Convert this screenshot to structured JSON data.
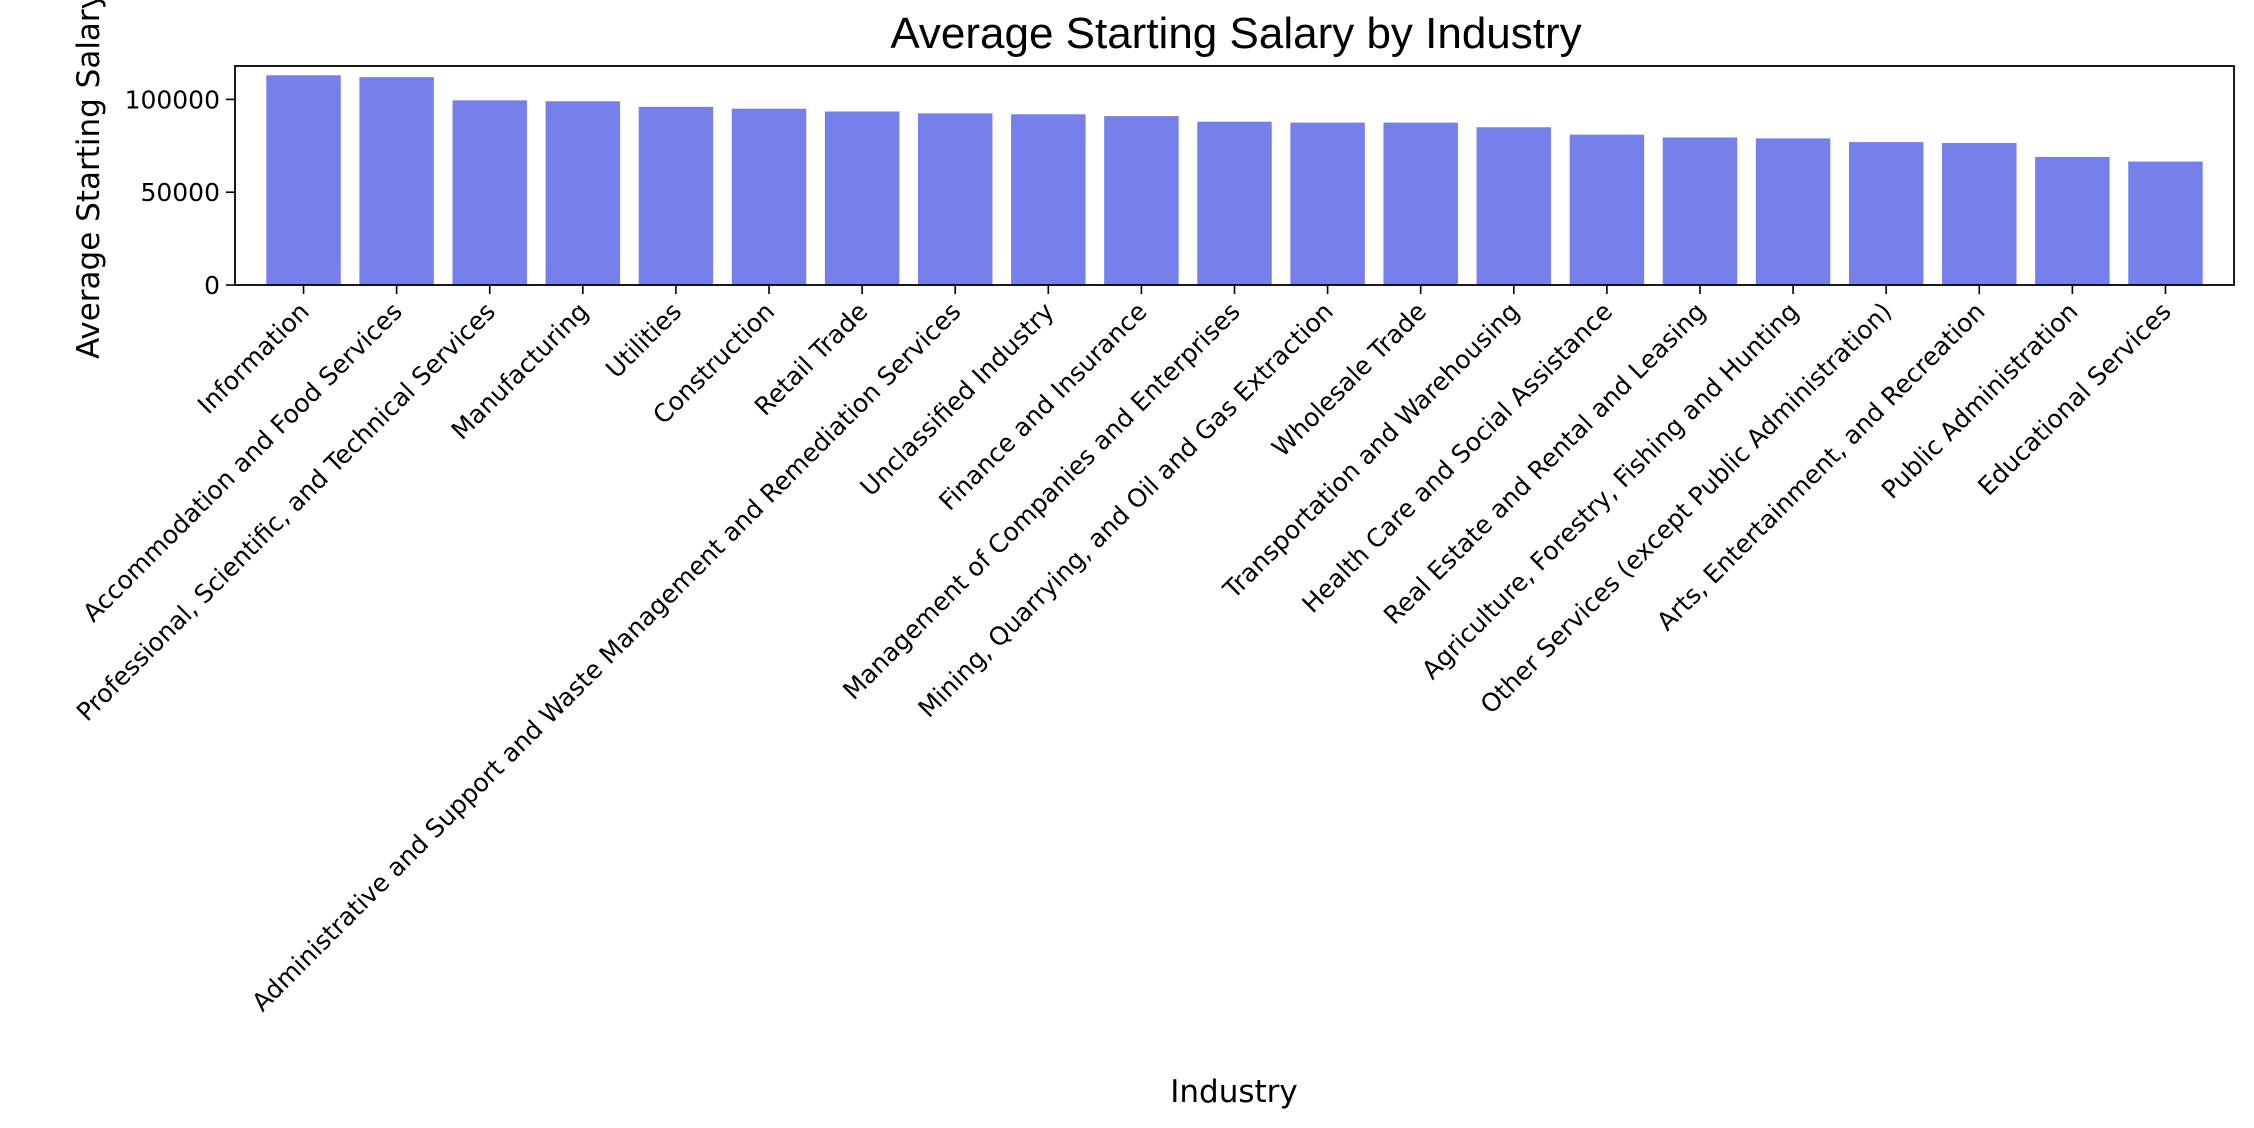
{
  "chart_data": {
    "type": "bar",
    "title": "Average Starting Salary by Industry",
    "xlabel": "Industry",
    "ylabel": "Average Starting Salary",
    "ylim": [
      0,
      118000
    ],
    "yticks": [
      0,
      50000,
      100000
    ],
    "ytick_labels": [
      "0",
      "50000",
      "100000"
    ],
    "grid": false,
    "bar_color": "#7680ea",
    "categories": [
      "Information",
      "Accommodation and Food Services",
      "Professional, Scientific, and Technical Services",
      "Manufacturing",
      "Utilities",
      "Construction",
      "Retail Trade",
      "Administrative and Support and Waste Management and Remediation Services",
      "Unclassified Industry",
      "Finance and Insurance",
      "Management of Companies and Enterprises",
      "Mining, Quarrying, and Oil and Gas Extraction",
      "Wholesale Trade",
      "Transportation and Warehousing",
      "Health Care and Social Assistance",
      "Real Estate and Rental and Leasing",
      "Agriculture, Forestry, Fishing and Hunting",
      "Other Services (except Public Administration)",
      "Arts, Entertainment, and Recreation",
      "Public Administration",
      "Educational Services"
    ],
    "values": [
      113000,
      112000,
      99500,
      99000,
      96000,
      95000,
      93500,
      92500,
      92000,
      91000,
      88000,
      87500,
      87500,
      85000,
      81000,
      79500,
      79000,
      77000,
      76500,
      69000,
      66500
    ]
  }
}
